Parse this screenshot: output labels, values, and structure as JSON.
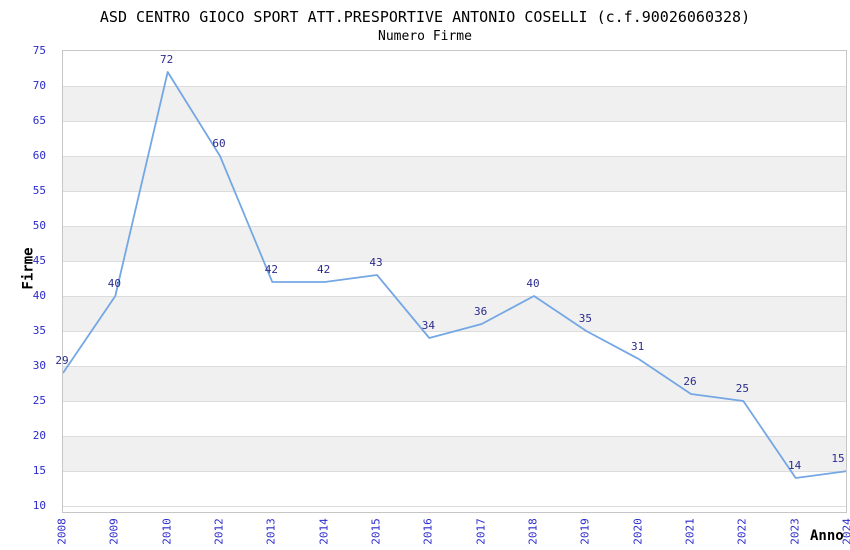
{
  "chart_data": {
    "type": "line",
    "title": "ASD CENTRO GIOCO SPORT ATT.PRESPORTIVE ANTONIO COSELLI (c.f.90026060328)",
    "subtitle": "Numero Firme",
    "xlabel": "Anno",
    "ylabel": "Firme",
    "categories": [
      "2008",
      "2009",
      "2010",
      "2012",
      "2013",
      "2014",
      "2015",
      "2016",
      "2017",
      "2018",
      "2019",
      "2020",
      "2021",
      "2022",
      "2023",
      "2024"
    ],
    "values": [
      29,
      40,
      72,
      60,
      42,
      42,
      43,
      34,
      36,
      40,
      35,
      31,
      26,
      25,
      14,
      15
    ],
    "point_labels": [
      "29",
      "40",
      "72",
      "60",
      "42",
      "42",
      "43",
      "34",
      "36",
      "40",
      "35",
      "31",
      "26",
      "25",
      "14",
      "15"
    ],
    "ylim": [
      10,
      75
    ],
    "y_tick_step": 5,
    "y_ticks": [
      75,
      70,
      65,
      60,
      55,
      50,
      45,
      40,
      35,
      30,
      25,
      20,
      15,
      10
    ],
    "grid": "horizontal-only",
    "background_bands": "alternating white/gray every 5 units",
    "legend_position": "none",
    "colors": {
      "line": "#74a7e4",
      "axis_tick_label": "#2a2acd",
      "point_label": "#2b2b8f",
      "band_gray": "#f0f0f0",
      "gridline": "#dcdcdc",
      "plot_border": "#c6c6c6",
      "title_text": "#000000",
      "background": "#ffffff"
    }
  }
}
